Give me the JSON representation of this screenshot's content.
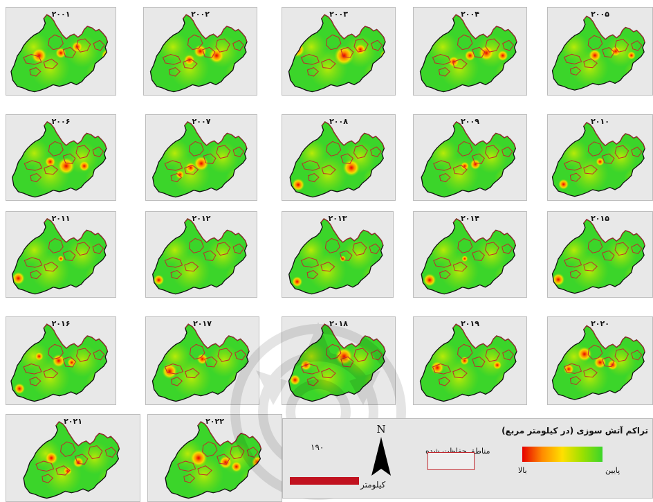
{
  "maps": [
    {
      "year": "۲۰۰۱",
      "hotspots": [
        [
          0.3,
          0.55,
          0.07
        ],
        [
          0.5,
          0.52,
          0.05
        ],
        [
          0.93,
          0.55,
          0.06
        ],
        [
          0.65,
          0.45,
          0.05
        ]
      ]
    },
    {
      "year": "۲۰۰۲",
      "hotspots": [
        [
          0.5,
          0.5,
          0.06
        ],
        [
          0.65,
          0.55,
          0.07
        ],
        [
          0.4,
          0.6,
          0.05
        ]
      ]
    },
    {
      "year": "۲۰۰۳",
      "hotspots": [
        [
          0.55,
          0.55,
          0.09
        ],
        [
          0.12,
          0.48,
          0.07
        ],
        [
          0.93,
          0.55,
          0.05
        ],
        [
          0.7,
          0.48,
          0.05
        ]
      ]
    },
    {
      "year": "۲۰۰۴",
      "hotspots": [
        [
          0.65,
          0.52,
          0.07
        ],
        [
          0.5,
          0.55,
          0.05
        ],
        [
          0.8,
          0.55,
          0.05
        ],
        [
          0.35,
          0.62,
          0.05
        ]
      ]
    },
    {
      "year": "۲۰۰۵",
      "hotspots": [
        [
          0.45,
          0.55,
          0.06
        ],
        [
          0.65,
          0.5,
          0.05
        ],
        [
          0.8,
          0.55,
          0.04
        ]
      ]
    },
    {
      "year": "۲۰۰۶",
      "hotspots": [
        [
          0.55,
          0.6,
          0.08
        ],
        [
          0.72,
          0.6,
          0.05
        ],
        [
          0.4,
          0.55,
          0.05
        ],
        [
          0.93,
          0.58,
          0.04
        ]
      ]
    },
    {
      "year": "۲۰۰۷",
      "hotspots": [
        [
          0.5,
          0.57,
          0.07
        ],
        [
          0.4,
          0.62,
          0.05
        ],
        [
          0.3,
          0.7,
          0.04
        ]
      ]
    },
    {
      "year": "۲۰۰۸",
      "hotspots": [
        [
          0.62,
          0.62,
          0.08
        ],
        [
          0.12,
          0.82,
          0.06
        ]
      ]
    },
    {
      "year": "۲۰۰۹",
      "hotspots": [
        [
          0.55,
          0.58,
          0.05
        ],
        [
          0.45,
          0.6,
          0.04
        ]
      ]
    },
    {
      "year": "۲۰۱۰",
      "hotspots": [
        [
          0.15,
          0.82,
          0.05
        ],
        [
          0.5,
          0.55,
          0.04
        ]
      ]
    },
    {
      "year": "۲۰۱۱",
      "hotspots": [
        [
          0.1,
          0.78,
          0.06
        ],
        [
          0.5,
          0.55,
          0.03
        ]
      ]
    },
    {
      "year": "۲۰۱۲",
      "hotspots": [
        [
          0.1,
          0.8,
          0.05
        ]
      ]
    },
    {
      "year": "۲۰۱۳",
      "hotspots": [
        [
          0.12,
          0.82,
          0.05
        ],
        [
          0.55,
          0.55,
          0.03
        ]
      ]
    },
    {
      "year": "۲۰۱۴",
      "hotspots": [
        [
          0.12,
          0.8,
          0.06
        ],
        [
          0.45,
          0.55,
          0.03
        ]
      ]
    },
    {
      "year": "۲۰۱۵",
      "hotspots": [
        [
          0.1,
          0.8,
          0.06
        ]
      ]
    },
    {
      "year": "۲۰۱۶",
      "hotspots": [
        [
          0.48,
          0.5,
          0.06
        ],
        [
          0.12,
          0.82,
          0.05
        ],
        [
          0.3,
          0.45,
          0.04
        ],
        [
          0.6,
          0.52,
          0.04
        ]
      ]
    },
    {
      "year": "۲۰۱۷",
      "hotspots": [
        [
          0.2,
          0.62,
          0.07
        ],
        [
          0.5,
          0.48,
          0.05
        ],
        [
          0.1,
          0.42,
          0.05
        ]
      ]
    },
    {
      "year": "۲۰۱۸",
      "hotspots": [
        [
          0.55,
          0.45,
          0.08
        ],
        [
          0.2,
          0.55,
          0.05
        ],
        [
          0.1,
          0.72,
          0.05
        ]
      ]
    },
    {
      "year": "۲۰۱۹",
      "hotspots": [
        [
          0.2,
          0.58,
          0.06
        ],
        [
          0.45,
          0.5,
          0.04
        ],
        [
          0.75,
          0.55,
          0.04
        ]
      ]
    },
    {
      "year": "۲۰۲۰",
      "hotspots": [
        [
          0.35,
          0.42,
          0.07
        ],
        [
          0.5,
          0.52,
          0.06
        ],
        [
          0.62,
          0.55,
          0.05
        ],
        [
          0.2,
          0.6,
          0.05
        ]
      ]
    },
    {
      "year": "۲۰۲۱",
      "hotspots": [
        [
          0.3,
          0.5,
          0.06
        ],
        [
          0.55,
          0.55,
          0.05
        ],
        [
          0.45,
          0.65,
          0.04
        ]
      ]
    },
    {
      "year": "۲۰۲۲",
      "hotspots": [
        [
          0.35,
          0.5,
          0.08
        ],
        [
          0.6,
          0.55,
          0.06
        ],
        [
          0.9,
          0.55,
          0.06
        ],
        [
          0.7,
          0.6,
          0.05
        ]
      ]
    }
  ],
  "legend": {
    "title": "تراکم آتش سوزی (در کیلومتر مربع)",
    "high": "بالا",
    "low": "پایین",
    "protected": "مناطق حفاظت شده",
    "north": "N",
    "scale_value": "۱۹۰",
    "scale_unit": "کیلومتر",
    "ramp_colors": [
      "#e60000",
      "#ff8c00",
      "#ffe000",
      "#9be000",
      "#3bd52a"
    ],
    "protected_color": "#c1272d"
  },
  "colors": {
    "land": "#3bd52a",
    "land_border": "#111111",
    "protected": "#c1272d",
    "panel_bg": "#e8e8e8"
  }
}
